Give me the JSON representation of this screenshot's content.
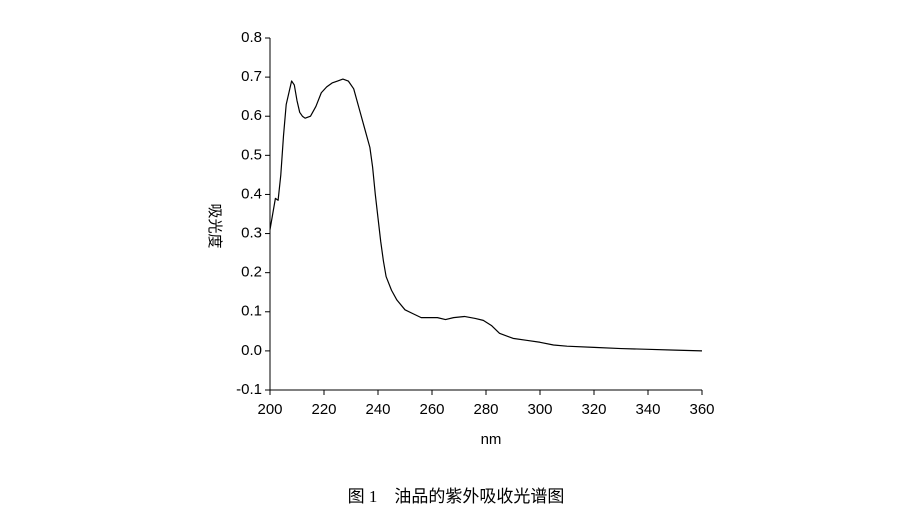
{
  "chart_data": {
    "type": "line",
    "caption": "图 1　油品的紫外吸收光谱图",
    "x_label": "nm",
    "y_label": "吸光度",
    "xlim": [
      200,
      360
    ],
    "ylim": [
      -0.1,
      0.8
    ],
    "xticks": [
      200,
      220,
      240,
      260,
      280,
      300,
      320,
      340,
      360
    ],
    "yticks": [
      -0.1,
      {
        "value": 0,
        "label": "0.0"
      },
      0.1,
      0.2,
      0.3,
      0.4,
      0.5,
      0.6,
      0.7,
      0.8
    ],
    "x": [
      200,
      201,
      202,
      203,
      204,
      205,
      206,
      207,
      208,
      209,
      210,
      211,
      212,
      213,
      215,
      217,
      219,
      221,
      223,
      225,
      227,
      229,
      231,
      233,
      235,
      237,
      238,
      239,
      240,
      241,
      242,
      243,
      245,
      247,
      250,
      253,
      256,
      259,
      262,
      265,
      268,
      272,
      276,
      279,
      282,
      285,
      290,
      295,
      300,
      305,
      310,
      320,
      330,
      340,
      350,
      360
    ],
    "series": [
      {
        "color": "#000000",
        "values": [
          0.31,
          0.35,
          0.39,
          0.385,
          0.45,
          0.55,
          0.63,
          0.66,
          0.69,
          0.68,
          0.64,
          0.61,
          0.6,
          0.595,
          0.6,
          0.625,
          0.66,
          0.675,
          0.685,
          0.69,
          0.695,
          0.69,
          0.67,
          0.62,
          0.57,
          0.52,
          0.47,
          0.4,
          0.34,
          0.28,
          0.23,
          0.19,
          0.155,
          0.13,
          0.105,
          0.095,
          0.085,
          0.085,
          0.085,
          0.08,
          0.085,
          0.088,
          0.083,
          0.078,
          0.065,
          0.045,
          0.032,
          0.027,
          0.022,
          0.015,
          0.012,
          0.009,
          0.006,
          0.004,
          0.002,
          0.0
        ]
      }
    ]
  }
}
